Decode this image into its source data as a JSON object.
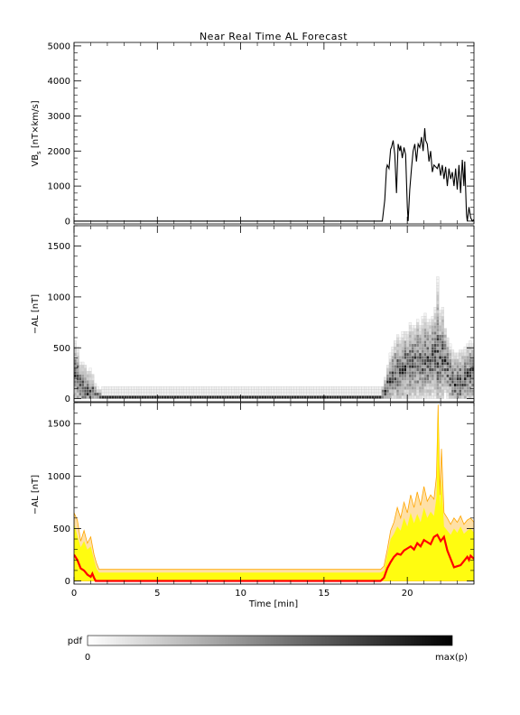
{
  "chart_data": {
    "title": "Near Real Time AL Forecast",
    "xlabel": "Time [min]",
    "x_ticks": [
      0,
      5,
      10,
      15,
      20
    ],
    "xlim": [
      0,
      24
    ],
    "panels": [
      {
        "type": "line",
        "ylabel_main": "VB",
        "ylabel_sub": "s",
        "ylabel_rest": " [nT×km/s]",
        "ylim": [
          -80,
          5100
        ],
        "y_ticks": [
          0,
          1000,
          2000,
          3000,
          4000,
          5000
        ],
        "series": [
          {
            "color": "#000000",
            "x": [
              0,
              18.5,
              18.65,
              18.75,
              18.8,
              18.9,
              19.0,
              19.05,
              19.15,
              19.25,
              19.35,
              19.45,
              19.55,
              19.6,
              19.7,
              19.8,
              19.9,
              20.0,
              20.05,
              20.15,
              20.25,
              20.35,
              20.45,
              20.55,
              20.65,
              20.75,
              20.85,
              20.95,
              21.05,
              21.1,
              21.2,
              21.3,
              21.4,
              21.5,
              21.6,
              21.7,
              21.8,
              21.9,
              22.0,
              22.1,
              22.2,
              22.3,
              22.4,
              22.5,
              22.6,
              22.7,
              22.8,
              22.9,
              23.0,
              23.1,
              23.2,
              23.3,
              23.4,
              23.45,
              23.55,
              23.6,
              23.7,
              23.8,
              23.9,
              24.0
            ],
            "y": [
              0,
              0,
              600,
              1500,
              1600,
              1500,
              2050,
              2100,
              2300,
              1900,
              800,
              2200,
              2000,
              2150,
              1800,
              2100,
              1900,
              400,
              0,
              900,
              1500,
              2000,
              2200,
              1700,
              2200,
              2100,
              2400,
              2000,
              2650,
              2300,
              2200,
              1700,
              2000,
              1400,
              1600,
              1550,
              1500,
              1650,
              1300,
              1600,
              1200,
              1550,
              1000,
              1500,
              1200,
              1400,
              1000,
              1500,
              900,
              1600,
              800,
              1750,
              1000,
              1700,
              200,
              0,
              400,
              100,
              0,
              50
            ]
          }
        ]
      },
      {
        "type": "heatmap",
        "ylabel": "−AL [nT]",
        "ylim": [
          -30,
          1700
        ],
        "y_ticks": [
          0,
          500,
          1000,
          1500
        ]
      },
      {
        "type": "area",
        "ylabel": "−AL [nT]",
        "ylim": [
          -30,
          1700
        ],
        "y_ticks": [
          0,
          500,
          1000,
          1500
        ],
        "series": [
          {
            "color": "#ffa500",
            "x": [
              0,
              0.2,
              0.4,
              0.6,
              0.8,
              1.0,
              1.2,
              1.35,
              1.5,
              18.4,
              18.6,
              18.8,
              19.0,
              19.2,
              19.4,
              19.6,
              19.8,
              20.0,
              20.2,
              20.4,
              20.6,
              20.8,
              21.0,
              21.2,
              21.4,
              21.6,
              21.75,
              21.85,
              21.95,
              22.05,
              22.2,
              22.4,
              22.6,
              22.8,
              23.0,
              23.2,
              23.4,
              23.6,
              23.8,
              24.0
            ],
            "y": [
              650,
              580,
              380,
              480,
              360,
              420,
              250,
              170,
              110,
              110,
              140,
              300,
              480,
              560,
              700,
              600,
              750,
              650,
              820,
              700,
              850,
              720,
              900,
              760,
              820,
              780,
              1000,
              1680,
              820,
              1260,
              650,
              600,
              540,
              600,
              560,
              620,
              540,
              580,
              600,
              560
            ]
          },
          {
            "color": "#ffff00",
            "x": [
              0,
              0.2,
              0.4,
              0.6,
              0.8,
              1.0,
              1.2,
              1.35,
              1.5,
              18.4,
              18.6,
              18.8,
              19.0,
              19.2,
              19.4,
              19.6,
              19.8,
              20.0,
              20.2,
              20.4,
              20.6,
              20.8,
              21.0,
              21.2,
              21.4,
              21.6,
              21.75,
              21.85,
              21.95,
              22.05,
              22.2,
              22.4,
              22.6,
              22.8,
              23.0,
              23.2,
              23.4,
              23.6,
              23.8,
              24.0
            ],
            "y": [
              550,
              430,
              320,
              380,
              300,
              330,
              200,
              120,
              80,
              80,
              100,
              250,
              400,
              450,
              520,
              480,
              600,
              520,
              650,
              550,
              640,
              560,
              700,
              600,
              660,
              620,
              800,
              1650,
              700,
              1000,
              520,
              480,
              440,
              500,
              460,
              520,
              450,
              480,
              500,
              460
            ]
          },
          {
            "color": "#ff0000",
            "x": [
              0,
              0.2,
              0.4,
              0.6,
              0.8,
              1.0,
              1.1,
              1.2,
              1.3,
              18.4,
              18.6,
              18.8,
              19.0,
              19.2,
              19.4,
              19.6,
              19.8,
              20.0,
              20.2,
              20.4,
              20.6,
              20.8,
              21.0,
              21.2,
              21.4,
              21.6,
              21.8,
              22.0,
              22.2,
              22.4,
              22.6,
              22.8,
              23.0,
              23.2,
              23.4,
              23.6,
              23.7,
              23.8,
              24.0
            ],
            "y": [
              250,
              200,
              120,
              100,
              60,
              40,
              70,
              30,
              0,
              0,
              30,
              120,
              180,
              230,
              260,
              250,
              290,
              310,
              330,
              300,
              360,
              330,
              390,
              370,
              350,
              420,
              440,
              380,
              420,
              290,
              210,
              130,
              140,
              150,
              190,
              230,
              200,
              240,
              210
            ]
          }
        ]
      }
    ],
    "colorbar": {
      "label": "pdf",
      "min_label": "0",
      "max_label": "max(p)",
      "from_color": "#ffffff",
      "to_color": "#000000"
    }
  }
}
